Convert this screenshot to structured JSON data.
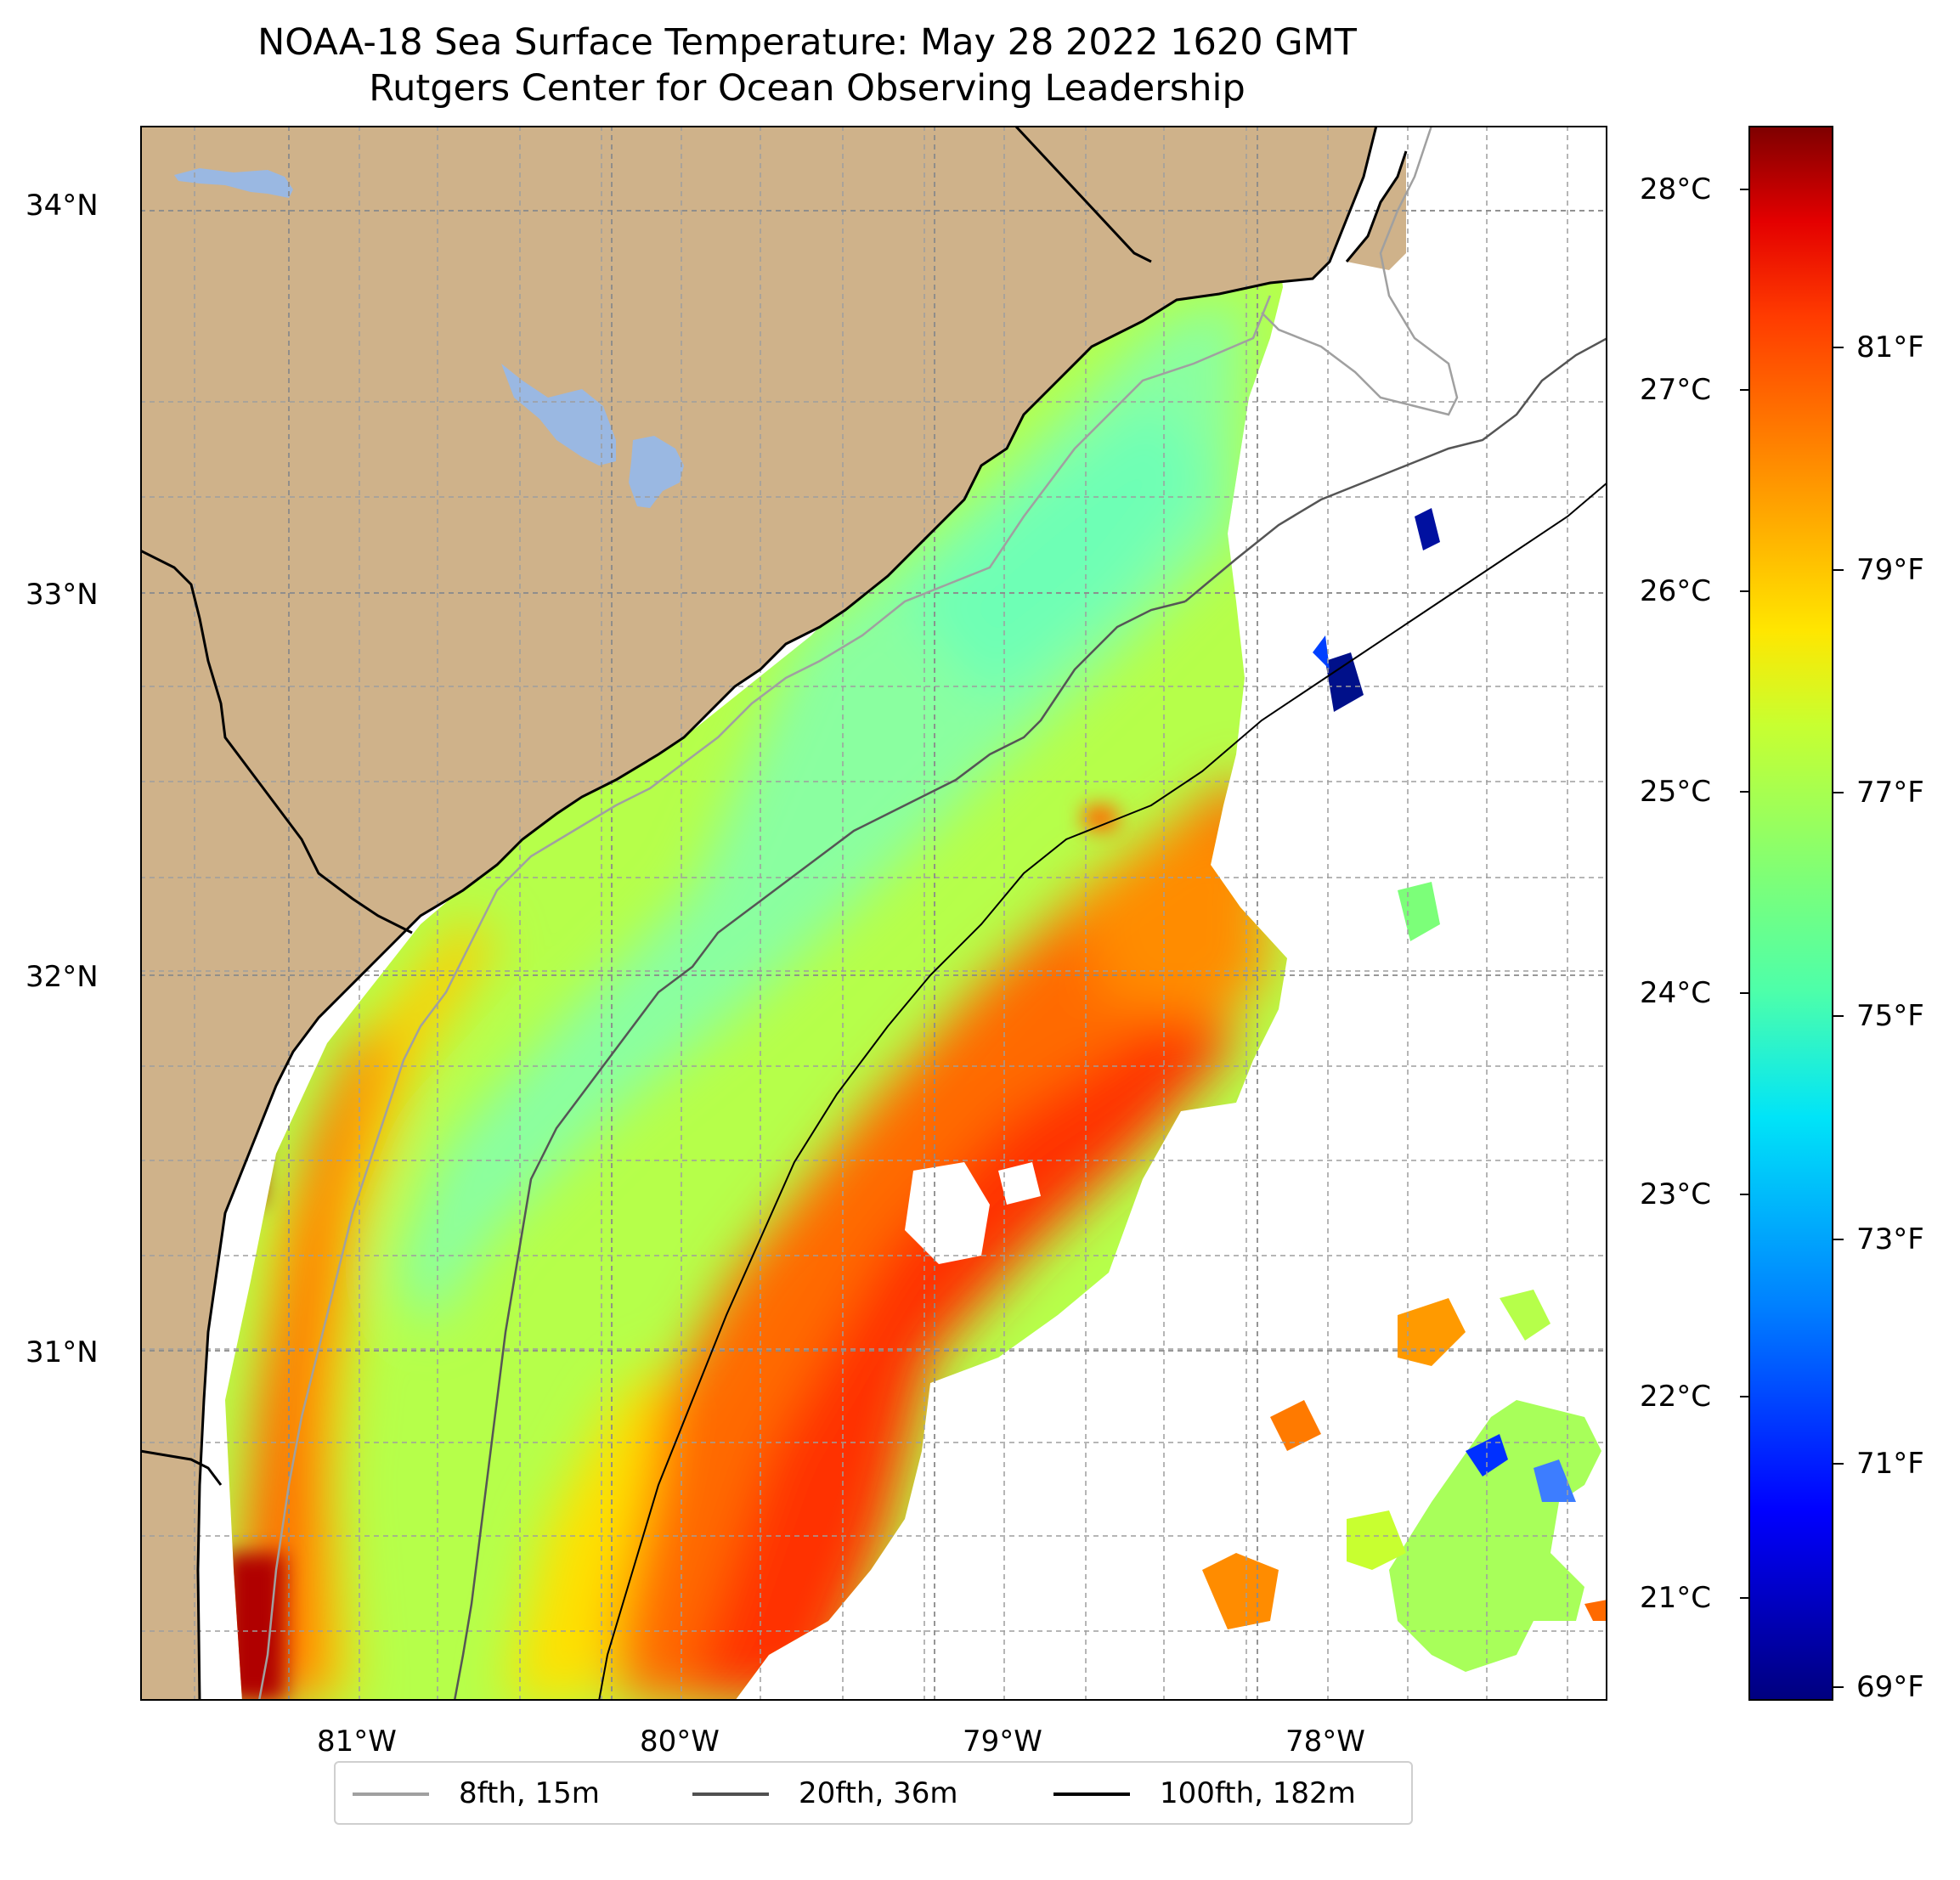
{
  "title": {
    "line1": "NOAA-18 Sea Surface Temperature: May 28 2022 1620 GMT",
    "line2": "Rutgers Center for Ocean Observing Leadership"
  },
  "axes": {
    "lat_labels": [
      "34°N",
      "33°N",
      "32°N",
      "31°N"
    ],
    "lon_labels": [
      "81°W",
      "80°W",
      "79°W",
      "78°W"
    ]
  },
  "colorbar": {
    "celsius_labels": [
      "28°C",
      "27°C",
      "26°C",
      "25°C",
      "24°C",
      "23°C",
      "22°C",
      "21°C"
    ],
    "fahrenheit_labels": [
      "81°F",
      "79°F",
      "77°F",
      "75°F",
      "73°F",
      "71°F",
      "69°F"
    ],
    "range_celsius": [
      20.5,
      28.3
    ]
  },
  "legend": {
    "items": [
      {
        "label": "8fth, 15m",
        "color": "#a0a0a0"
      },
      {
        "label": "20fth, 36m",
        "color": "#505050"
      },
      {
        "label": "100fth, 182m",
        "color": "#000000"
      }
    ]
  },
  "colors": {
    "land": "#cfb28a",
    "lake": "#9ab8e2",
    "cloud_mask": "#ffffff"
  }
}
